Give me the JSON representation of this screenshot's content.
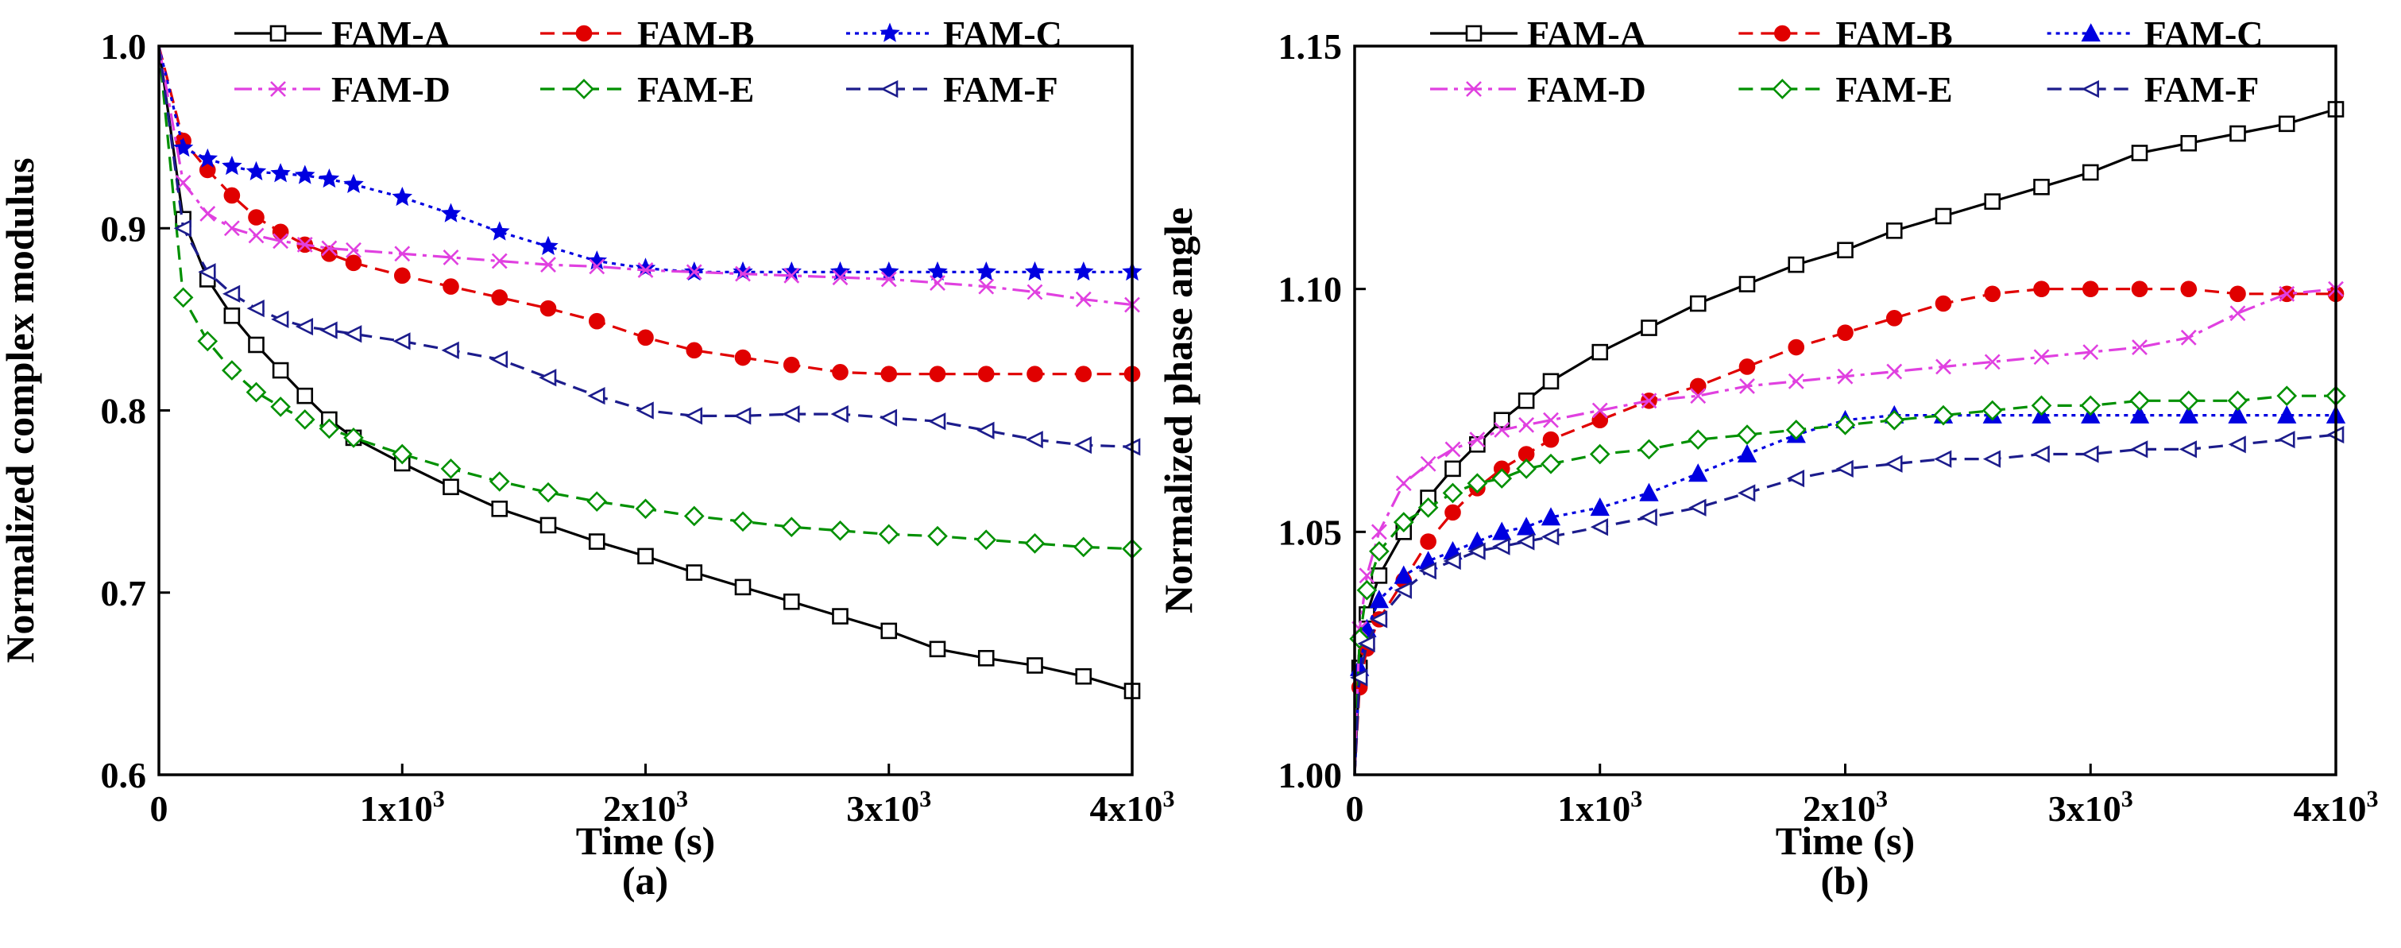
{
  "chart_data": [
    {
      "type": "line",
      "panel_label": "(a)",
      "xlabel": "Time (s)",
      "ylabel": "Normalized complex modulus",
      "xlim": [
        0,
        4000
      ],
      "ylim": [
        0.6,
        1.0
      ],
      "xticks": [
        {
          "v": 0,
          "label": "0",
          "exp": ""
        },
        {
          "v": 1000,
          "label": "1x10",
          "exp": "3"
        },
        {
          "v": 2000,
          "label": "2x10",
          "exp": "3"
        },
        {
          "v": 3000,
          "label": "3x10",
          "exp": "3"
        },
        {
          "v": 4000,
          "label": "4x10",
          "exp": "3"
        }
      ],
      "yticks": [
        {
          "v": 0.6,
          "label": "0.6"
        },
        {
          "v": 0.7,
          "label": "0.7"
        },
        {
          "v": 0.8,
          "label": "0.8"
        },
        {
          "v": 0.9,
          "label": "0.9"
        },
        {
          "v": 1.0,
          "label": "1.0"
        }
      ],
      "legend": "top, two rows of three",
      "series": [
        {
          "name": "FAM-A",
          "color": "#000000",
          "marker": "square",
          "dash": "solid",
          "x": [
            0,
            100,
            200,
            300,
            400,
            500,
            600,
            700,
            800,
            1000,
            1200,
            1400,
            1600,
            1800,
            2000,
            2200,
            2400,
            2600,
            2800,
            3000,
            3200,
            3400,
            3600,
            3800,
            4000
          ],
          "y": [
            1.0,
            0.905,
            0.872,
            0.852,
            0.836,
            0.822,
            0.808,
            0.795,
            0.785,
            0.771,
            0.758,
            0.746,
            0.737,
            0.728,
            0.72,
            0.711,
            0.703,
            0.695,
            0.687,
            0.679,
            0.669,
            0.664,
            0.66,
            0.654,
            0.646
          ]
        },
        {
          "name": "FAM-B",
          "color": "#e00000",
          "marker": "circle-filled",
          "dash": "dash",
          "x": [
            0,
            100,
            200,
            300,
            400,
            500,
            600,
            700,
            800,
            1000,
            1200,
            1400,
            1600,
            1800,
            2000,
            2200,
            2400,
            2600,
            2800,
            3000,
            3200,
            3400,
            3600,
            3800,
            4000
          ],
          "y": [
            1.0,
            0.948,
            0.932,
            0.918,
            0.906,
            0.898,
            0.891,
            0.886,
            0.881,
            0.874,
            0.868,
            0.862,
            0.856,
            0.849,
            0.84,
            0.833,
            0.829,
            0.825,
            0.821,
            0.82,
            0.82,
            0.82,
            0.82,
            0.82,
            0.82
          ]
        },
        {
          "name": "FAM-C",
          "color": "#0000e0",
          "marker": "star",
          "dash": "dot",
          "x": [
            0,
            100,
            200,
            300,
            400,
            500,
            600,
            700,
            800,
            1000,
            1200,
            1400,
            1600,
            1800,
            2000,
            2200,
            2400,
            2600,
            2800,
            3000,
            3200,
            3400,
            3600,
            3800,
            4000
          ],
          "y": [
            1.0,
            0.944,
            0.938,
            0.934,
            0.931,
            0.93,
            0.929,
            0.927,
            0.924,
            0.917,
            0.908,
            0.898,
            0.89,
            0.882,
            0.878,
            0.876,
            0.876,
            0.876,
            0.876,
            0.876,
            0.876,
            0.876,
            0.876,
            0.876,
            0.876
          ]
        },
        {
          "name": "FAM-D",
          "color": "#e040e0",
          "marker": "x",
          "dash": "dashdot",
          "x": [
            0,
            100,
            200,
            300,
            400,
            500,
            600,
            700,
            800,
            1000,
            1200,
            1400,
            1600,
            1800,
            2000,
            2200,
            2400,
            2600,
            2800,
            3000,
            3200,
            3400,
            3600,
            3800,
            4000
          ],
          "y": [
            1.0,
            0.925,
            0.908,
            0.9,
            0.896,
            0.893,
            0.891,
            0.889,
            0.888,
            0.886,
            0.884,
            0.882,
            0.88,
            0.879,
            0.877,
            0.876,
            0.875,
            0.874,
            0.873,
            0.872,
            0.87,
            0.868,
            0.865,
            0.861,
            0.858
          ]
        },
        {
          "name": "FAM-E",
          "color": "#009000",
          "marker": "diamond",
          "dash": "dash",
          "x": [
            0,
            100,
            200,
            300,
            400,
            500,
            600,
            700,
            800,
            1000,
            1200,
            1400,
            1600,
            1800,
            2000,
            2200,
            2400,
            2600,
            2800,
            3000,
            3200,
            3400,
            3600,
            3800,
            4000
          ],
          "y": [
            1.0,
            0.862,
            0.838,
            0.822,
            0.81,
            0.802,
            0.795,
            0.79,
            0.785,
            0.776,
            0.768,
            0.761,
            0.755,
            0.75,
            0.746,
            0.742,
            0.739,
            0.736,
            0.734,
            0.732,
            0.731,
            0.729,
            0.727,
            0.725,
            0.724
          ]
        },
        {
          "name": "FAM-F",
          "color": "#1c1c8c",
          "marker": "tri-left",
          "dash": "dash",
          "x": [
            0,
            100,
            200,
            300,
            400,
            500,
            600,
            700,
            800,
            1000,
            1200,
            1400,
            1600,
            1800,
            2000,
            2200,
            2400,
            2600,
            2800,
            3000,
            3200,
            3400,
            3600,
            3800,
            4000
          ],
          "y": [
            1.0,
            0.9,
            0.876,
            0.864,
            0.856,
            0.85,
            0.846,
            0.844,
            0.842,
            0.838,
            0.833,
            0.828,
            0.818,
            0.808,
            0.8,
            0.797,
            0.797,
            0.798,
            0.798,
            0.796,
            0.794,
            0.789,
            0.784,
            0.781,
            0.78
          ]
        }
      ]
    },
    {
      "type": "line",
      "panel_label": "(b)",
      "xlabel": "Time (s)",
      "ylabel": "Normalized phase angle",
      "xlim": [
        0,
        4000
      ],
      "ylim": [
        1.0,
        1.15
      ],
      "xticks": [
        {
          "v": 0,
          "label": "0",
          "exp": ""
        },
        {
          "v": 1000,
          "label": "1x10",
          "exp": "3"
        },
        {
          "v": 2000,
          "label": "2x10",
          "exp": "3"
        },
        {
          "v": 3000,
          "label": "3x10",
          "exp": "3"
        },
        {
          "v": 4000,
          "label": "4x10",
          "exp": "3"
        }
      ],
      "yticks": [
        {
          "v": 1.0,
          "label": "1.00"
        },
        {
          "v": 1.05,
          "label": "1.05"
        },
        {
          "v": 1.1,
          "label": "1.10"
        },
        {
          "v": 1.15,
          "label": "1.15"
        }
      ],
      "legend": "top, two rows of three",
      "series": [
        {
          "name": "FAM-A",
          "color": "#000000",
          "marker": "square",
          "dash": "solid",
          "x": [
            0,
            20,
            50,
            100,
            200,
            300,
            400,
            500,
            600,
            700,
            800,
            1000,
            1200,
            1400,
            1600,
            1800,
            2000,
            2200,
            2400,
            2600,
            2800,
            3000,
            3200,
            3400,
            3600,
            3800,
            4000
          ],
          "y": [
            1.0,
            1.022,
            1.033,
            1.041,
            1.05,
            1.057,
            1.063,
            1.068,
            1.073,
            1.077,
            1.081,
            1.087,
            1.092,
            1.097,
            1.101,
            1.105,
            1.108,
            1.112,
            1.115,
            1.118,
            1.121,
            1.124,
            1.128,
            1.13,
            1.132,
            1.134,
            1.137
          ]
        },
        {
          "name": "FAM-B",
          "color": "#e00000",
          "marker": "circle-filled",
          "dash": "dash",
          "x": [
            0,
            20,
            50,
            100,
            200,
            300,
            400,
            500,
            600,
            700,
            800,
            1000,
            1200,
            1400,
            1600,
            1800,
            2000,
            2200,
            2400,
            2600,
            2800,
            3000,
            3200,
            3400,
            3600,
            3800,
            4000
          ],
          "y": [
            1.0,
            1.018,
            1.026,
            1.032,
            1.04,
            1.048,
            1.054,
            1.059,
            1.063,
            1.066,
            1.069,
            1.073,
            1.077,
            1.08,
            1.084,
            1.088,
            1.091,
            1.094,
            1.097,
            1.099,
            1.1,
            1.1,
            1.1,
            1.1,
            1.099,
            1.099,
            1.099
          ]
        },
        {
          "name": "FAM-C",
          "color": "#0000e0",
          "marker": "tri-up-filled",
          "dash": "dot",
          "x": [
            0,
            20,
            50,
            100,
            200,
            300,
            400,
            500,
            600,
            700,
            800,
            1000,
            1200,
            1400,
            1600,
            1800,
            2000,
            2200,
            2400,
            2600,
            2800,
            3000,
            3200,
            3400,
            3600,
            3800,
            4000
          ],
          "y": [
            1.0,
            1.022,
            1.03,
            1.036,
            1.041,
            1.044,
            1.046,
            1.048,
            1.05,
            1.051,
            1.053,
            1.055,
            1.058,
            1.062,
            1.066,
            1.07,
            1.073,
            1.074,
            1.074,
            1.074,
            1.074,
            1.074,
            1.074,
            1.074,
            1.074,
            1.074,
            1.074
          ]
        },
        {
          "name": "FAM-D",
          "color": "#e040e0",
          "marker": "x",
          "dash": "dashdot",
          "x": [
            0,
            20,
            50,
            100,
            200,
            300,
            400,
            500,
            600,
            700,
            800,
            1000,
            1200,
            1400,
            1600,
            1800,
            2000,
            2200,
            2400,
            2600,
            2800,
            3000,
            3200,
            3400,
            3600,
            3800,
            4000
          ],
          "y": [
            1.0,
            1.03,
            1.041,
            1.05,
            1.06,
            1.064,
            1.067,
            1.069,
            1.071,
            1.072,
            1.073,
            1.075,
            1.077,
            1.078,
            1.08,
            1.081,
            1.082,
            1.083,
            1.084,
            1.085,
            1.086,
            1.087,
            1.088,
            1.09,
            1.095,
            1.099,
            1.1
          ]
        },
        {
          "name": "FAM-E",
          "color": "#009000",
          "marker": "diamond",
          "dash": "dash",
          "x": [
            0,
            20,
            50,
            100,
            200,
            300,
            400,
            500,
            600,
            700,
            800,
            1000,
            1200,
            1400,
            1600,
            1800,
            2000,
            2200,
            2400,
            2600,
            2800,
            3000,
            3200,
            3400,
            3600,
            3800,
            4000
          ],
          "y": [
            1.0,
            1.028,
            1.038,
            1.046,
            1.052,
            1.055,
            1.058,
            1.06,
            1.061,
            1.063,
            1.064,
            1.066,
            1.067,
            1.069,
            1.07,
            1.071,
            1.072,
            1.073,
            1.074,
            1.075,
            1.076,
            1.076,
            1.077,
            1.077,
            1.077,
            1.078,
            1.078
          ]
        },
        {
          "name": "FAM-F",
          "color": "#1c1c8c",
          "marker": "tri-left",
          "dash": "dash",
          "x": [
            0,
            20,
            50,
            100,
            200,
            300,
            400,
            500,
            600,
            700,
            800,
            1000,
            1200,
            1400,
            1600,
            1800,
            2000,
            2200,
            2400,
            2600,
            2800,
            3000,
            3200,
            3400,
            3600,
            3800,
            4000
          ],
          "y": [
            1.0,
            1.02,
            1.027,
            1.032,
            1.038,
            1.042,
            1.044,
            1.046,
            1.047,
            1.048,
            1.049,
            1.051,
            1.053,
            1.055,
            1.058,
            1.061,
            1.063,
            1.064,
            1.065,
            1.065,
            1.066,
            1.066,
            1.067,
            1.067,
            1.068,
            1.069,
            1.07
          ]
        }
      ]
    }
  ]
}
